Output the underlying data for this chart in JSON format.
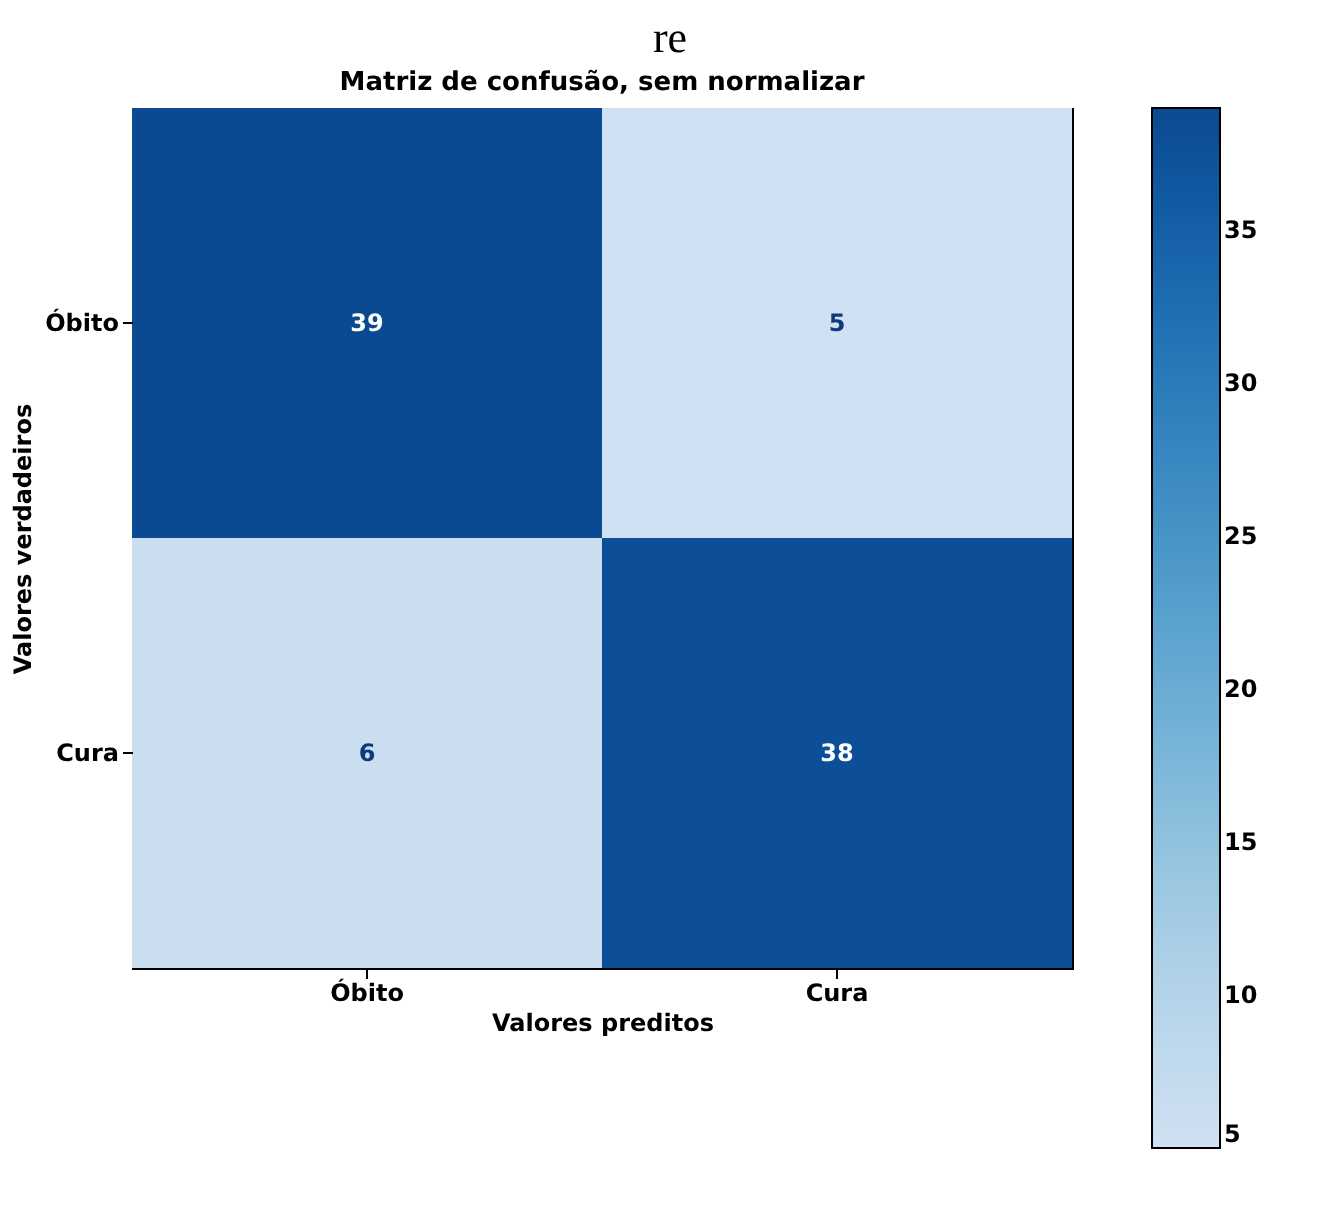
{
  "chart_data": {
    "type": "heatmap",
    "title": "Matriz de confusão, sem normalizar",
    "annotations": [
      "re"
    ],
    "xlabel": "Valores preditos",
    "ylabel": "Valores verdadeiros",
    "categories": [
      "Óbito",
      "Cura"
    ],
    "y_categories": [
      "Óbito",
      "Cura"
    ],
    "cells": [
      [
        39,
        5
      ],
      [
        6,
        38
      ]
    ],
    "clim": [
      5,
      39
    ],
    "cticks": [
      5,
      10,
      15,
      20,
      25,
      30,
      35
    ],
    "data_labels": true
  }
}
